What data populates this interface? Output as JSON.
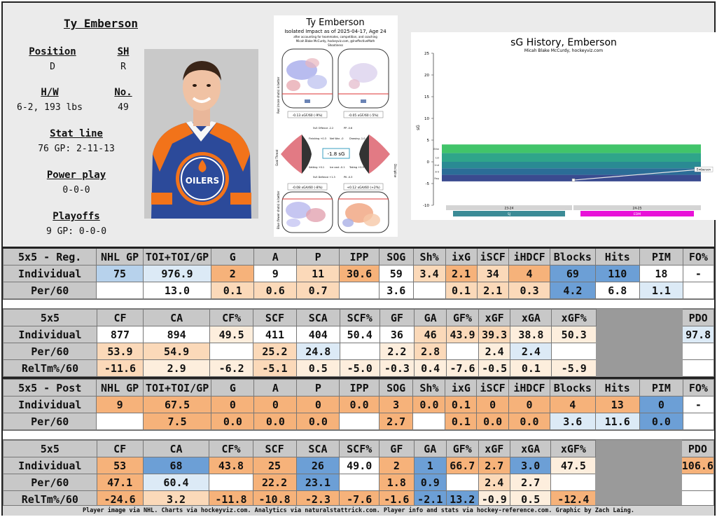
{
  "player": {
    "name": "Ty Emberson",
    "position_label": "Position",
    "position": "D",
    "shoots_label": "SH",
    "shoots": "R",
    "hw_label": "H/W",
    "hw": "6-2, 193 lbs",
    "number_label": "No.",
    "number": "49",
    "statline_label": "Stat line",
    "statline": "76 GP: 2-11-13",
    "pp_label": "Power play",
    "pp": "0-0-0",
    "playoffs_label": "Playoffs",
    "playoffs": "9 GP: 0-0-0"
  },
  "impact_chart": {
    "title": "Ty Emberson",
    "subtitle": "Isolated Impact as of 2025-04-17, Age 24",
    "subtitle2": "after accounting for teammates, competition, and coaching",
    "credit": "Micah Blake McCurdy, hockeyviz.com, @IneffectiveMath",
    "section": "Shootiness",
    "top_left_value": "-0.13 xGF/60 (-9%)",
    "top_right_value": "-0.05 xGF/60 (-5%)",
    "center_value": "-1.8 sG",
    "bottom_left_value": "-0.08 xGA/60 (-8%)",
    "bottom_right_value": "+0.12 xGA/60 (+2%)",
    "labels": [
      "5v5 Offence -2.2",
      "PP -0.6",
      "Finishing +0.3",
      "Net Wor. -0",
      "Drawing -1.0",
      "Setting +0.1",
      "Ice cost -0.1",
      "Taking +0.9",
      "5v5 Defence +1.3",
      "PK -0.3"
    ],
    "side_top": "Red (more shots) is better",
    "side_bottom": "Blue (fewer shots) is better",
    "side_mid_left": "Goal Threat",
    "side_mid_right": "Discipline"
  },
  "sg_chart": {
    "title": "sG History, Emberson",
    "credit": "Micah Blake McCurdy, hockeyviz.com",
    "ylabel": "sG",
    "yticks": [
      "25",
      "20",
      "15",
      "10",
      "5",
      "0",
      "-5",
      "-10"
    ],
    "seasons": [
      "23-24",
      "24-25"
    ],
    "teams": [
      "SJ",
      "EDM"
    ],
    "team_colors": [
      "#3c8b96",
      "#e812d8"
    ],
    "bands": [
      "Elite",
      "1st",
      "2nd",
      "3rd",
      "Rep"
    ],
    "band_colors": [
      "#41c46a",
      "#2fa58a",
      "#2a8a93",
      "#2b6d97",
      "#3a4b8f"
    ],
    "point_label": "Emberson",
    "chart_data": {
      "type": "line",
      "x": [
        "23-24",
        "24-25"
      ],
      "series": [
        {
          "name": "Emberson",
          "values": [
            -4.2,
            -1.8
          ]
        }
      ],
      "ylim": [
        -10,
        25
      ],
      "xlabel": "",
      "ylabel": "sG"
    }
  },
  "reg_box": {
    "headers": [
      "5x5 - Reg.",
      "NHL GP",
      "TOI+TOI/GP",
      "G",
      "A",
      "P",
      "IPP",
      "SOG",
      "Sh%",
      "ixG",
      "iSCF",
      "iHDCF",
      "Blocks",
      "Hits",
      "PIM",
      "FO%"
    ],
    "rows": [
      {
        "label": "Individual",
        "cells": [
          "75",
          "976.9",
          "2",
          "9",
          "11",
          "30.6",
          "59",
          "3.4",
          "2.1",
          "34",
          "4",
          "69",
          "110",
          "18",
          "-"
        ]
      },
      {
        "label": "Per/60",
        "cells": [
          "",
          "13.0",
          "0.1",
          "0.6",
          "0.7",
          "",
          "3.6",
          "",
          "0.1",
          "2.1",
          "0.3",
          "4.2",
          "6.8",
          "1.1",
          ""
        ]
      }
    ]
  },
  "reg_onice": {
    "headers": [
      "5x5",
      "CF",
      "CA",
      "CF%",
      "SCF",
      "SCA",
      "SCF%",
      "GF",
      "GA",
      "GF%",
      "xGF",
      "xGA",
      "xGF%",
      "",
      "PDO"
    ],
    "rows": [
      {
        "label": "Individual",
        "cells": [
          "877",
          "894",
          "49.5",
          "411",
          "404",
          "50.4",
          "36",
          "46",
          "43.9",
          "39.3",
          "38.8",
          "50.3",
          "97.8"
        ]
      },
      {
        "label": "Per/60",
        "cells": [
          "53.9",
          "54.9",
          "",
          "25.2",
          "24.8",
          "",
          "2.2",
          "2.8",
          "",
          "2.4",
          "2.4",
          "",
          ""
        ]
      },
      {
        "label": "RelTm%/60",
        "cells": [
          "-11.6",
          "2.9",
          "-6.2",
          "-5.1",
          "0.5",
          "-5.0",
          "-0.3",
          "0.4",
          "-7.6",
          "-0.5",
          "0.1",
          "-5.9",
          ""
        ]
      }
    ]
  },
  "post_box": {
    "headers": [
      "5x5 - Post",
      "NHL GP",
      "TOI+TOI/GP",
      "G",
      "A",
      "P",
      "IPP",
      "SOG",
      "Sh%",
      "ixG",
      "iSCF",
      "iHDCF",
      "Blocks",
      "Hits",
      "PIM",
      "FO%"
    ],
    "rows": [
      {
        "label": "Individual",
        "cells": [
          "9",
          "67.5",
          "0",
          "0",
          "0",
          "0.0",
          "3",
          "0.0",
          "0.1",
          "0",
          "0",
          "4",
          "13",
          "0",
          "-"
        ]
      },
      {
        "label": "Per/60",
        "cells": [
          "",
          "7.5",
          "0.0",
          "0.0",
          "0.0",
          "",
          "2.7",
          "",
          "0.1",
          "0.0",
          "0.0",
          "3.6",
          "11.6",
          "0.0",
          ""
        ]
      }
    ]
  },
  "post_onice": {
    "headers": [
      "5x5",
      "CF",
      "CA",
      "CF%",
      "SCF",
      "SCA",
      "SCF%",
      "GF",
      "GA",
      "GF%",
      "xGF",
      "xGA",
      "xGF%",
      "",
      "PDO"
    ],
    "rows": [
      {
        "label": "Individual",
        "cells": [
          "53",
          "68",
          "43.8",
          "25",
          "26",
          "49.0",
          "2",
          "1",
          "66.7",
          "2.7",
          "3.0",
          "47.5",
          "106.6"
        ]
      },
      {
        "label": "Per/60",
        "cells": [
          "47.1",
          "60.4",
          "",
          "22.2",
          "23.1",
          "",
          "1.8",
          "0.9",
          "",
          "2.4",
          "2.7",
          "",
          ""
        ]
      },
      {
        "label": "RelTm%/60",
        "cells": [
          "-24.6",
          "3.2",
          "-11.8",
          "-10.8",
          "-2.3",
          "-7.6",
          "-1.6",
          "-2.1",
          "13.2",
          "-0.9",
          "0.5",
          "-12.4",
          ""
        ]
      }
    ]
  },
  "footer": "Player image via NHL. Charts via hockeyviz.com. Analytics via naturalstattrick.com. Player info and stats via hockey-reference.com. Graphic by Zach Laing."
}
